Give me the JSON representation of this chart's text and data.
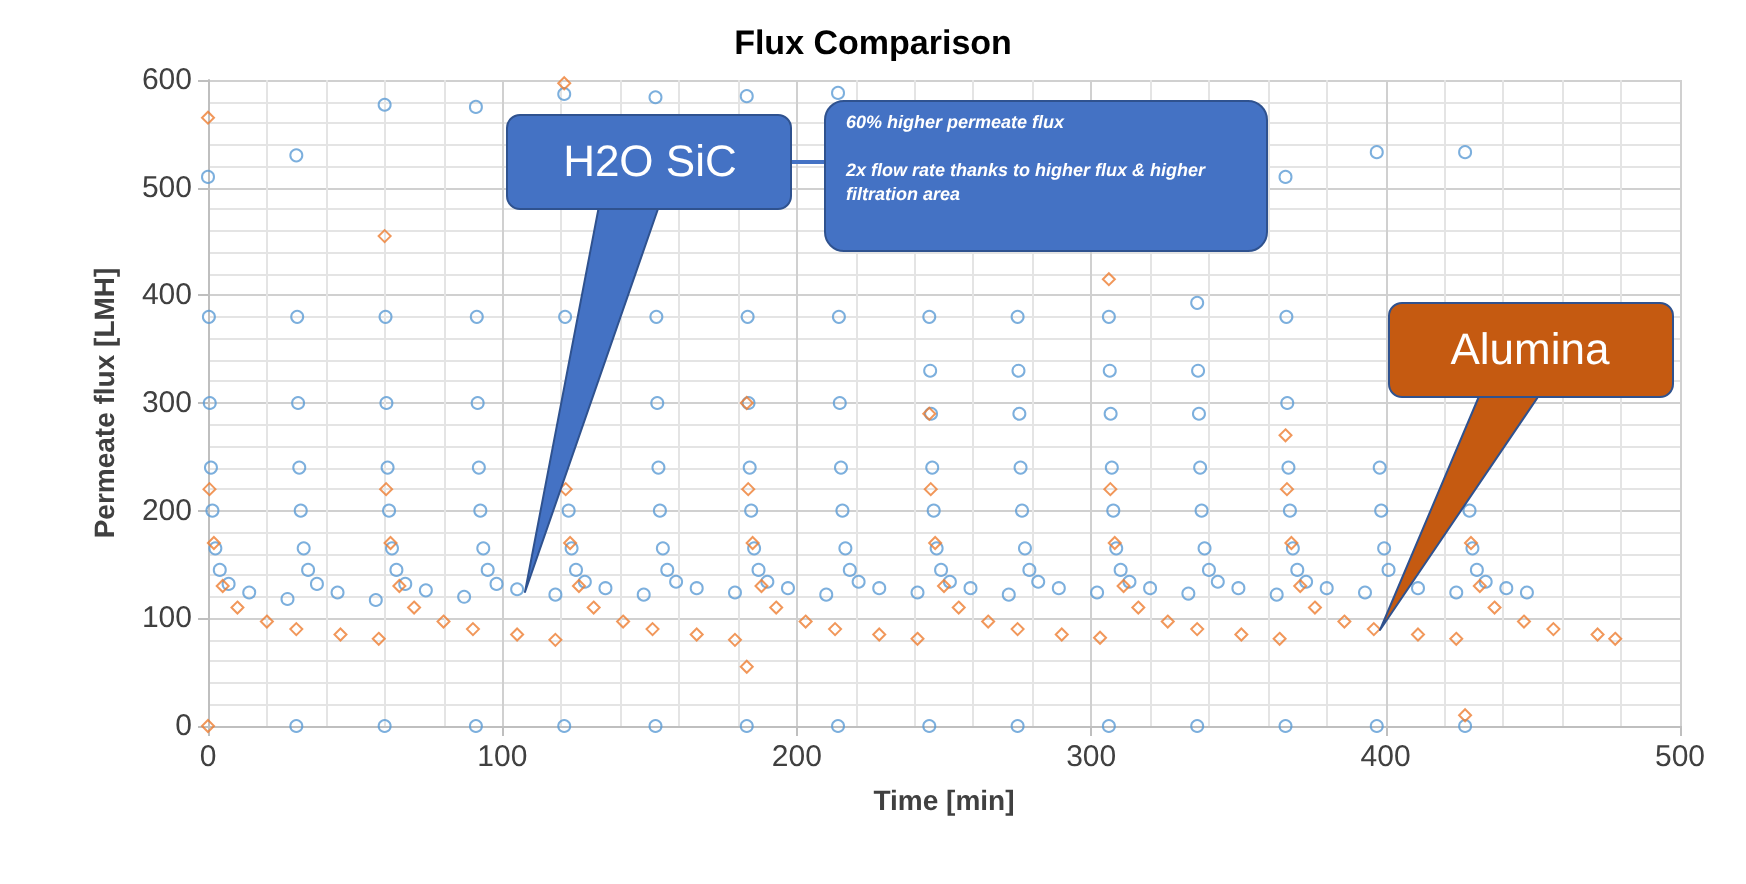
{
  "chart_data": {
    "type": "scatter",
    "title": "Flux Comparison",
    "xlabel": "Time [min]",
    "ylabel": "Permeate flux [LMH]",
    "xlim": [
      0,
      500
    ],
    "xticks": [
      0,
      100,
      200,
      300,
      400,
      500
    ],
    "ylim": [
      0,
      600
    ],
    "yticks": [
      0,
      100,
      200,
      300,
      400,
      500,
      600
    ],
    "grid": true,
    "series": [
      {
        "color": "#5b9bd5",
        "marker": "circle",
        "x": [
          0,
          0.3,
          0.6,
          1,
          1.5,
          2.5,
          4,
          7,
          14,
          27,
          30,
          30,
          30.3,
          30.6,
          31,
          31.5,
          32.5,
          34,
          37,
          44,
          57,
          60,
          60,
          60.3,
          60.6,
          61,
          61.5,
          62.5,
          64,
          67,
          74,
          87,
          91,
          91,
          91.3,
          91.6,
          92,
          92.5,
          93.5,
          95,
          98,
          105,
          118,
          121,
          121,
          121.3,
          121.6,
          122,
          122.5,
          123.5,
          125,
          128,
          135,
          148,
          152,
          152,
          152.3,
          152.6,
          153,
          153.5,
          154.5,
          156,
          159,
          166,
          179,
          183,
          183,
          183.3,
          183.6,
          184,
          184.5,
          185.5,
          187,
          190,
          197,
          210,
          214,
          214,
          214.3,
          214.6,
          215,
          215.5,
          216.5,
          218,
          221,
          228,
          241,
          245,
          245,
          245.3,
          245.6,
          246,
          246.5,
          247.5,
          249,
          252,
          259,
          272,
          275,
          275,
          275.3,
          275.6,
          276,
          276.5,
          277.5,
          279,
          282,
          289,
          302,
          306,
          306,
          306.3,
          306.6,
          307,
          307.5,
          308.5,
          310,
          313,
          320,
          333,
          336,
          336,
          336.3,
          336.6,
          337,
          337.5,
          338.5,
          340,
          343,
          350,
          363,
          366,
          366,
          366.3,
          366.6,
          367,
          367.5,
          368.5,
          370,
          373,
          380,
          393,
          397,
          397,
          397.3,
          397.6,
          398,
          398.5,
          399.5,
          401,
          404,
          411,
          424,
          427,
          427,
          427.3,
          427.6,
          428,
          428.5,
          429.5,
          431,
          434,
          441,
          448
        ],
        "values": [
          510,
          380,
          300,
          240,
          200,
          165,
          145,
          132,
          124,
          118,
          0,
          530,
          380,
          300,
          240,
          200,
          165,
          145,
          132,
          124,
          117,
          0,
          577,
          380,
          300,
          240,
          200,
          165,
          145,
          132,
          126,
          120,
          0,
          575,
          380,
          300,
          240,
          200,
          165,
          145,
          132,
          127,
          122,
          0,
          587,
          380,
          null,
          null,
          200,
          165,
          145,
          134,
          128,
          122,
          0,
          584,
          380,
          300,
          240,
          200,
          165,
          145,
          134,
          128,
          124,
          0,
          585,
          380,
          300,
          240,
          200,
          165,
          145,
          134,
          128,
          122,
          0,
          588,
          380,
          300,
          240,
          200,
          165,
          145,
          134,
          128,
          124,
          0,
          380,
          330,
          290,
          240,
          200,
          165,
          145,
          134,
          128,
          122,
          0,
          380,
          330,
          290,
          240,
          200,
          165,
          145,
          134,
          128,
          124,
          0,
          380,
          330,
          290,
          240,
          200,
          165,
          145,
          134,
          128,
          123,
          0,
          393,
          330,
          290,
          240,
          200,
          165,
          145,
          134,
          128,
          122,
          0,
          510,
          380,
          300,
          240,
          200,
          165,
          145,
          134,
          128,
          124,
          0,
          533,
          null,
          null,
          240,
          200,
          165,
          145,
          null,
          128,
          124,
          0,
          533,
          null,
          null,
          null,
          200,
          165,
          145,
          134,
          128,
          124
        ]
      },
      {
        "color": "#ed7d31",
        "marker": "diamond",
        "x": [
          0,
          0,
          0.5,
          2,
          5,
          10,
          20,
          30,
          45,
          58,
          60,
          60.5,
          62,
          65,
          70,
          80,
          90,
          105,
          118,
          121,
          121.5,
          123,
          126,
          131,
          141,
          151,
          166,
          179,
          183,
          183,
          183.5,
          185,
          188,
          193,
          203,
          213,
          228,
          241,
          245,
          245.5,
          247,
          250,
          255,
          265,
          275,
          290,
          303,
          306,
          306.5,
          308,
          311,
          316,
          326,
          336,
          351,
          364,
          366,
          366.5,
          368,
          371,
          376,
          386,
          396,
          411,
          424,
          427,
          427.5,
          429,
          432,
          437,
          447,
          457,
          472,
          478
        ],
        "values": [
          0,
          565,
          220,
          170,
          130,
          110,
          97,
          90,
          85,
          81,
          455,
          220,
          170,
          130,
          110,
          97,
          90,
          85,
          80,
          597,
          220,
          170,
          130,
          110,
          97,
          90,
          85,
          80,
          55,
          300,
          220,
          170,
          130,
          110,
          97,
          90,
          85,
          81,
          290,
          220,
          170,
          130,
          110,
          97,
          90,
          85,
          82,
          415,
          220,
          170,
          130,
          110,
          97,
          90,
          85,
          81,
          270,
          220,
          170,
          130,
          110,
          97,
          90,
          85,
          81,
          10,
          null,
          170,
          130,
          110,
          97,
          90,
          85,
          81
        ]
      }
    ],
    "annotations": [
      {
        "text": "H2O SiC",
        "x": 108,
        "y": 125
      },
      "60% higher permeate flux\n\n2x flow rate thanks to higher flux & higher filtration area",
      "Alumina"
    ]
  }
}
